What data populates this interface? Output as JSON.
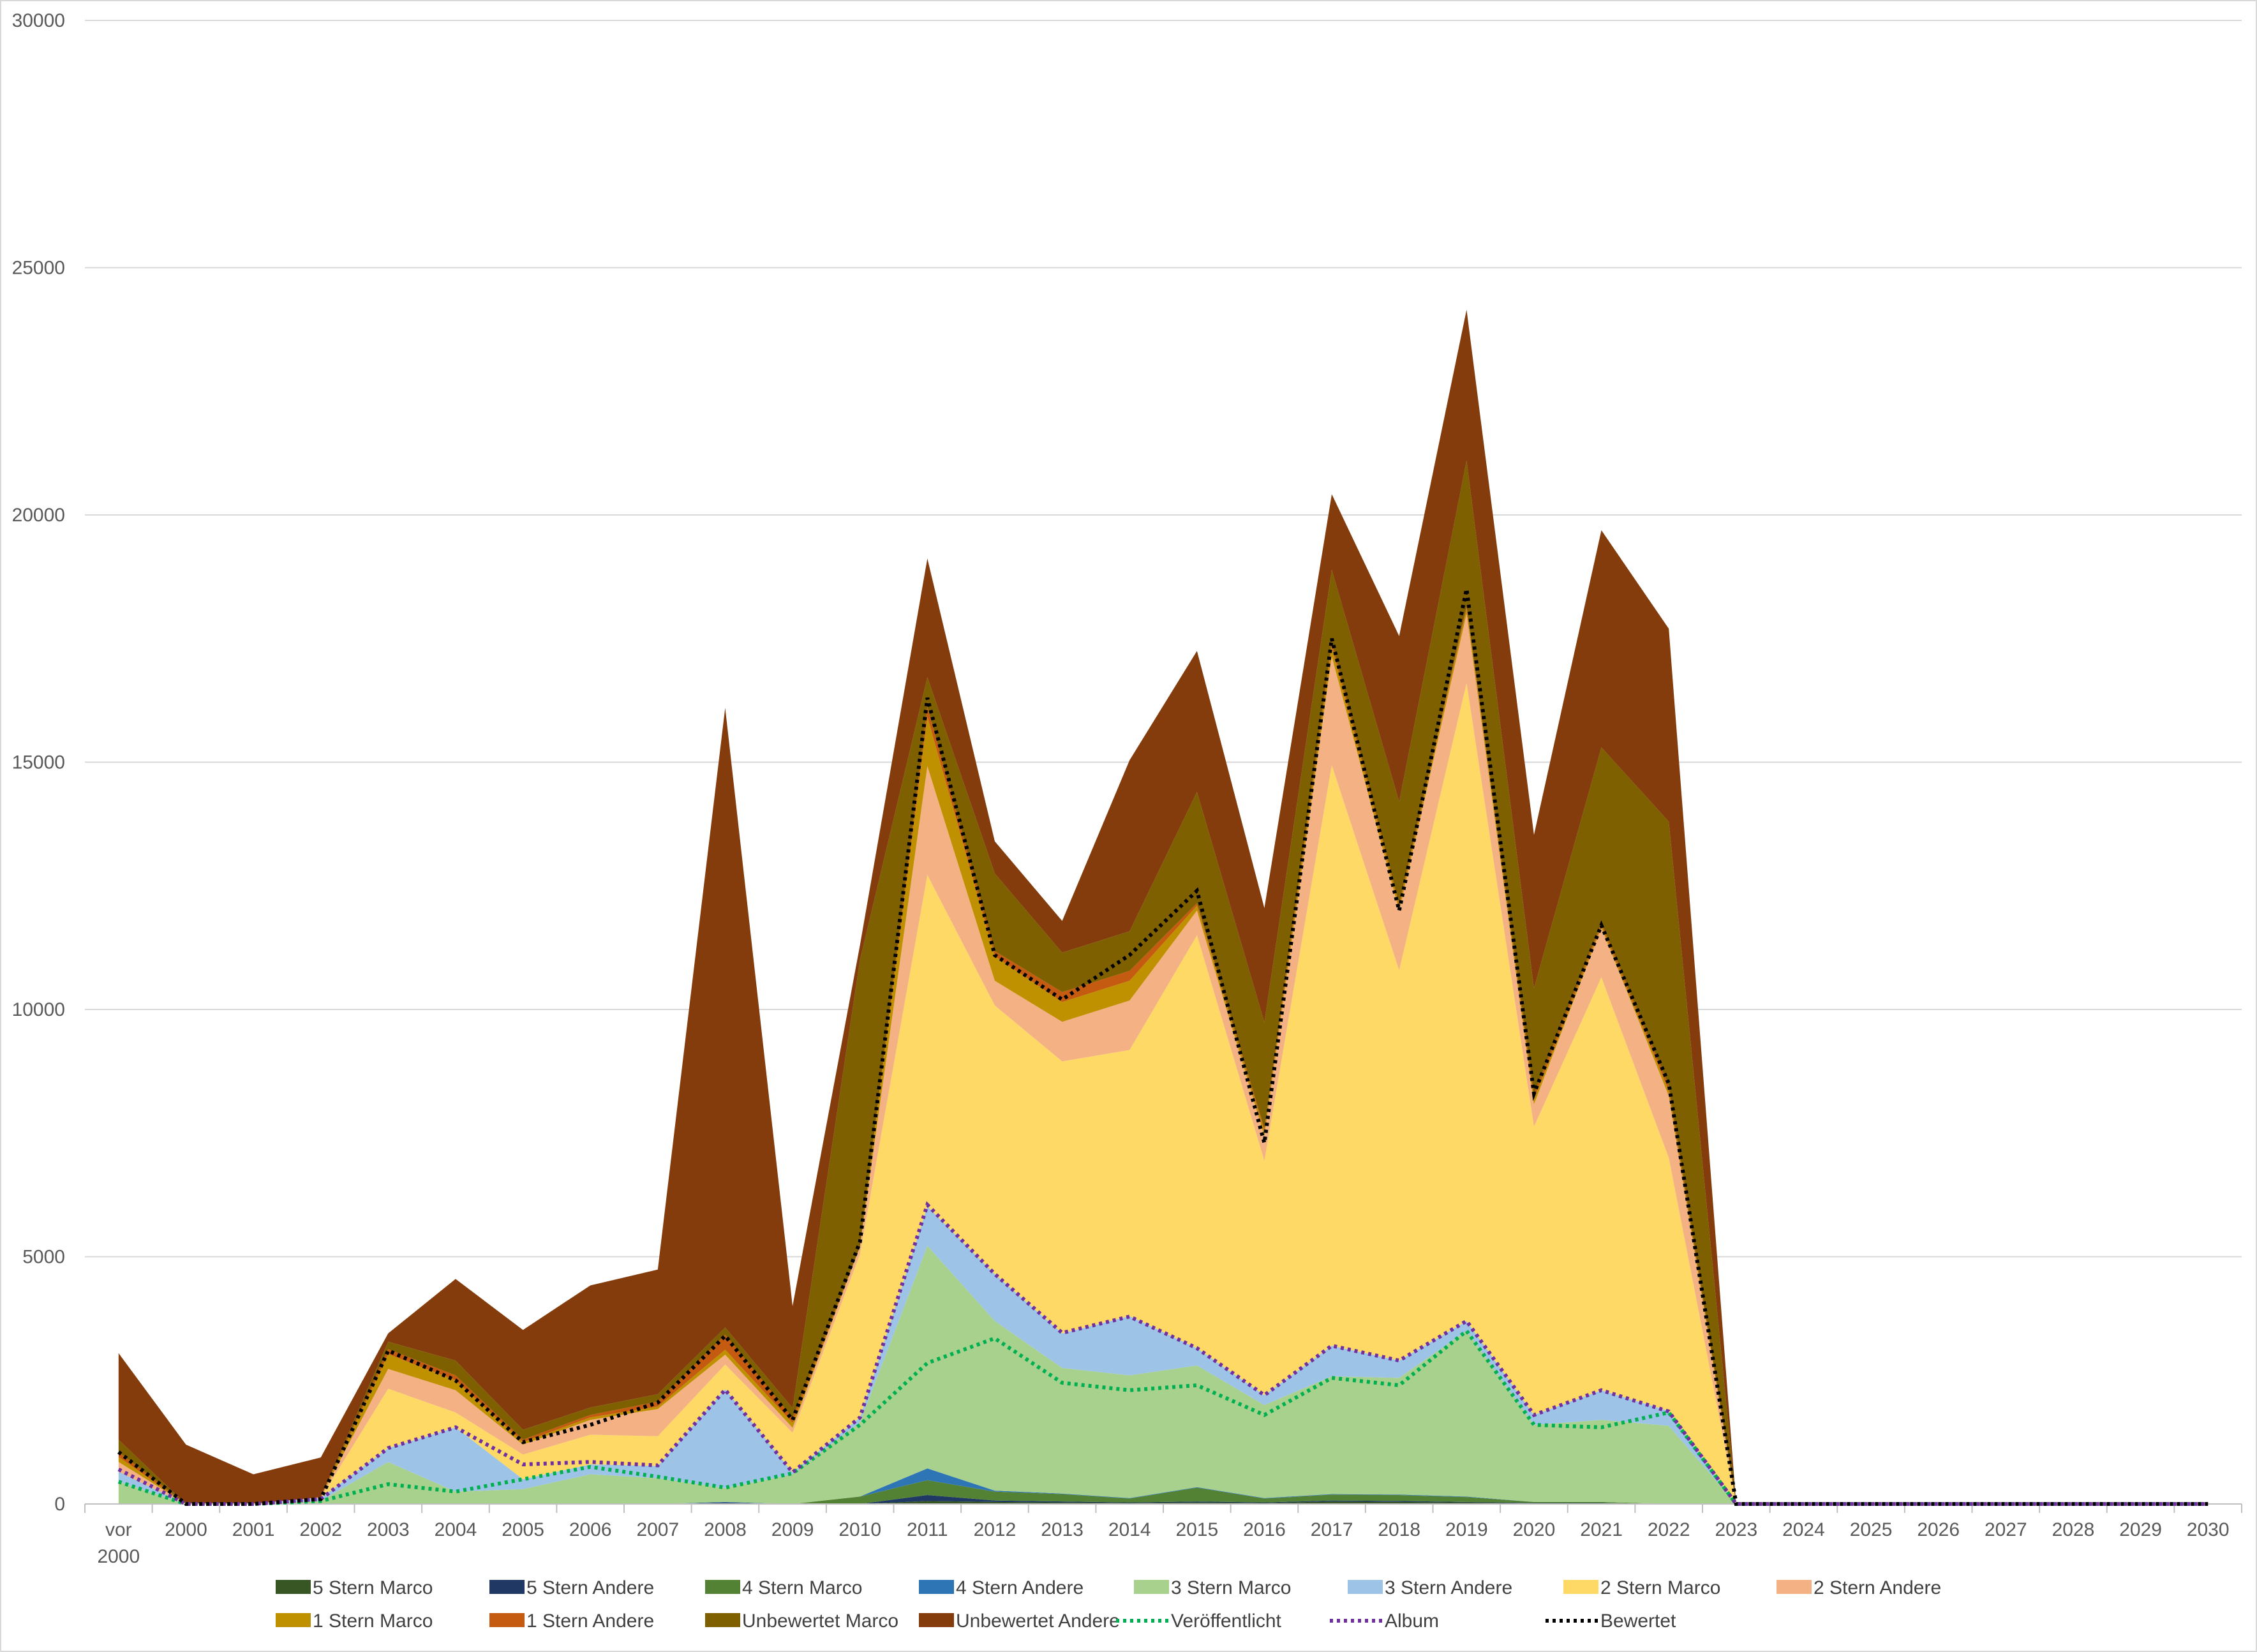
{
  "chart_data": {
    "type": "area",
    "stacked": true,
    "categories": [
      "vor 2000",
      "2000",
      "2001",
      "2002",
      "2003",
      "2004",
      "2005",
      "2006",
      "2007",
      "2008",
      "2009",
      "2010",
      "2011",
      "2012",
      "2013",
      "2014",
      "2015",
      "2016",
      "2017",
      "2018",
      "2019",
      "2020",
      "2021",
      "2022",
      "2023",
      "2024",
      "2025",
      "2026",
      "2027",
      "2028",
      "2029",
      "2030"
    ],
    "ylim": [
      0,
      30000
    ],
    "yticks": [
      "0",
      "5000",
      "10000",
      "15000",
      "20000",
      "25000",
      "30000"
    ],
    "grid": true,
    "legend_position": "bottom",
    "series": [
      {
        "name": "5 Stern Marco",
        "color": "#375623",
        "values": [
          0,
          0,
          0,
          0,
          0,
          0,
          0,
          0,
          0,
          0,
          0,
          0,
          60,
          40,
          30,
          20,
          30,
          20,
          50,
          40,
          30,
          10,
          10,
          0,
          0,
          0,
          0,
          0,
          0,
          0,
          0,
          0
        ]
      },
      {
        "name": "5 Stern Andere",
        "color": "#1f3864",
        "values": [
          0,
          0,
          0,
          0,
          0,
          0,
          0,
          0,
          0,
          30,
          0,
          0,
          120,
          30,
          20,
          10,
          20,
          10,
          20,
          20,
          10,
          10,
          10,
          0,
          0,
          0,
          0,
          0,
          0,
          0,
          0,
          0
        ]
      },
      {
        "name": "4 Stern Marco",
        "color": "#548235",
        "values": [
          0,
          0,
          0,
          0,
          0,
          0,
          0,
          0,
          0,
          0,
          0,
          150,
          300,
          180,
          150,
          80,
          280,
          80,
          120,
          120,
          100,
          20,
          20,
          0,
          0,
          0,
          0,
          0,
          0,
          0,
          0,
          0
        ]
      },
      {
        "name": "4 Stern Andere",
        "color": "#2e75b6",
        "values": [
          0,
          0,
          0,
          0,
          0,
          0,
          0,
          0,
          0,
          10,
          0,
          0,
          240,
          20,
          10,
          10,
          10,
          10,
          10,
          10,
          10,
          0,
          0,
          0,
          0,
          0,
          0,
          0,
          0,
          0,
          0,
          0
        ]
      },
      {
        "name": "3 Stern Marco",
        "color": "#a9d18e",
        "values": [
          450,
          0,
          0,
          60,
          850,
          250,
          300,
          600,
          520,
          280,
          600,
          1500,
          4500,
          3430,
          2540,
          2480,
          2460,
          1880,
          2380,
          2360,
          3350,
          1560,
          1660,
          1580,
          0,
          0,
          0,
          0,
          0,
          0,
          0,
          0
        ]
      },
      {
        "name": "3 Stern Andere",
        "color": "#9dc3e6",
        "values": [
          200,
          0,
          0,
          60,
          280,
          1300,
          200,
          200,
          250,
          2000,
          40,
          100,
          800,
          950,
          700,
          1200,
          350,
          200,
          620,
          350,
          200,
          200,
          600,
          300,
          0,
          0,
          0,
          0,
          0,
          0,
          0,
          0
        ]
      },
      {
        "name": "2 Stern Marco",
        "color": "#ffd966",
        "values": [
          0,
          0,
          0,
          0,
          1200,
          300,
          500,
          600,
          600,
          500,
          800,
          3300,
          6700,
          5430,
          5500,
          5380,
          8350,
          4740,
          11740,
          7890,
          12900,
          5830,
          8350,
          5120,
          0,
          0,
          0,
          0,
          0,
          0,
          0,
          0
        ]
      },
      {
        "name": "2 Stern Andere",
        "color": "#f4b183",
        "values": [
          200,
          0,
          0,
          20,
          400,
          450,
          200,
          300,
          550,
          200,
          100,
          150,
          2200,
          500,
          800,
          1000,
          500,
          500,
          2200,
          1200,
          1400,
          450,
          1000,
          1250,
          0,
          0,
          0,
          0,
          0,
          0,
          0,
          0
        ]
      },
      {
        "name": "1 Stern Marco",
        "color": "#bf9000",
        "values": [
          100,
          0,
          0,
          0,
          300,
          200,
          50,
          50,
          50,
          100,
          100,
          0,
          1000,
          500,
          400,
          400,
          100,
          100,
          200,
          100,
          100,
          100,
          50,
          100,
          0,
          0,
          0,
          0,
          0,
          0,
          0,
          0
        ]
      },
      {
        "name": "1 Stern Andere",
        "color": "#c55a11",
        "values": [
          100,
          0,
          0,
          0,
          100,
          100,
          50,
          50,
          100,
          300,
          100,
          0,
          200,
          100,
          200,
          200,
          50,
          50,
          100,
          50,
          50,
          100,
          50,
          100,
          0,
          0,
          0,
          0,
          0,
          0,
          0,
          0
        ]
      },
      {
        "name": "Unbewertet Marco",
        "color": "#7f6000",
        "values": [
          250,
          0,
          0,
          0,
          150,
          300,
          200,
          150,
          150,
          150,
          200,
          5800,
          600,
          1570,
          800,
          800,
          2250,
          2150,
          1450,
          2060,
          2950,
          2150,
          3550,
          5350,
          0,
          0,
          0,
          0,
          0,
          0,
          0,
          0
        ]
      },
      {
        "name": "Unbewertet Andere",
        "color": "#843c0c",
        "values": [
          1750,
          1200,
          600,
          800,
          170,
          1650,
          2020,
          2470,
          2520,
          12530,
          2060,
          300,
          2400,
          650,
          640,
          3460,
          2850,
          2310,
          1530,
          3350,
          3050,
          3100,
          4390,
          3900,
          0,
          0,
          0,
          0,
          0,
          0,
          0,
          0
        ]
      }
    ],
    "lines": [
      {
        "name": "Veröffentlicht",
        "color": "#00b050",
        "values": [
          450,
          0,
          0,
          60,
          400,
          250,
          500,
          750,
          550,
          330,
          620,
          1600,
          2850,
          3350,
          2450,
          2300,
          2400,
          1800,
          2550,
          2400,
          3500,
          1600,
          1550,
          1850,
          0,
          0,
          0,
          0,
          0,
          0,
          0,
          0
        ]
      },
      {
        "name": "Album",
        "color": "#7030a0",
        "values": [
          700,
          0,
          0,
          100,
          1130,
          1550,
          800,
          850,
          780,
          2310,
          640,
          1750,
          6050,
          4650,
          3460,
          3790,
          3150,
          2200,
          3200,
          2900,
          3700,
          1800,
          2300,
          1870,
          0,
          0,
          0,
          0,
          0,
          0,
          0,
          0
        ]
      },
      {
        "name": "Bewertet",
        "color": "#000000",
        "values": [
          1050,
          0,
          0,
          100,
          3100,
          2500,
          1250,
          1600,
          2050,
          3400,
          1700,
          5300,
          16300,
          11100,
          10200,
          11100,
          12400,
          7300,
          17500,
          12000,
          18500,
          8300,
          11700,
          8500,
          0,
          0,
          0,
          0,
          0,
          0,
          0,
          0
        ]
      }
    ]
  }
}
